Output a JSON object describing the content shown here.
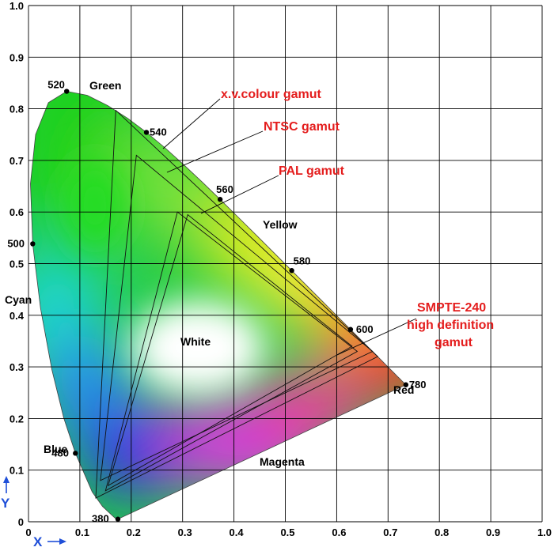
{
  "chart_data": {
    "type": "diagram",
    "xlim": [
      0,
      1
    ],
    "ylim": [
      0,
      1
    ],
    "x_ticks": [
      "0",
      "0.1",
      "0.2",
      "0.3",
      "0.4",
      "0.5",
      "0.6",
      "0.7",
      "0.8",
      "0.9",
      "1.0"
    ],
    "y_ticks": [
      "0",
      "0.1",
      "0.2",
      "0.3",
      "0.4",
      "0.5",
      "0.6",
      "0.7",
      "0.8",
      "0.9",
      "1.0"
    ],
    "x_axis_letter": "X",
    "y_axis_letter": "Y",
    "grid": true,
    "colors": {
      "gamut_label": "#e41d1d",
      "axis_arrow": "#1f4fd8",
      "grid": "#000000"
    },
    "locus": [
      [
        0.1741,
        0.005
      ],
      [
        0.1738,
        0.0049
      ],
      [
        0.1736,
        0.0049
      ],
      [
        0.173,
        0.0048
      ],
      [
        0.1721,
        0.0048
      ],
      [
        0.1703,
        0.0058
      ],
      [
        0.1666,
        0.0089
      ],
      [
        0.1611,
        0.0138
      ],
      [
        0.144,
        0.0297
      ],
      [
        0.1241,
        0.0578
      ],
      [
        0.0913,
        0.1327
      ],
      [
        0.0687,
        0.2007
      ],
      [
        0.0454,
        0.295
      ],
      [
        0.0235,
        0.4127
      ],
      [
        0.0082,
        0.5384
      ],
      [
        0.0039,
        0.6548
      ],
      [
        0.0139,
        0.7502
      ],
      [
        0.0389,
        0.812
      ],
      [
        0.0743,
        0.8338
      ],
      [
        0.1142,
        0.8262
      ],
      [
        0.1547,
        0.8059
      ],
      [
        0.1929,
        0.7816
      ],
      [
        0.2296,
        0.7543
      ],
      [
        0.2658,
        0.7243
      ],
      [
        0.3016,
        0.6923
      ],
      [
        0.3373,
        0.6589
      ],
      [
        0.3731,
        0.6245
      ],
      [
        0.4087,
        0.5896
      ],
      [
        0.4441,
        0.5547
      ],
      [
        0.4788,
        0.5202
      ],
      [
        0.5125,
        0.4866
      ],
      [
        0.5448,
        0.4544
      ],
      [
        0.5752,
        0.4242
      ],
      [
        0.6029,
        0.3965
      ],
      [
        0.627,
        0.3725
      ],
      [
        0.6482,
        0.3514
      ],
      [
        0.6658,
        0.334
      ],
      [
        0.6801,
        0.3197
      ],
      [
        0.6915,
        0.3083
      ],
      [
        0.7006,
        0.2993
      ],
      [
        0.7079,
        0.292
      ],
      [
        0.714,
        0.2859
      ],
      [
        0.719,
        0.2809
      ],
      [
        0.723,
        0.277
      ],
      [
        0.726,
        0.274
      ],
      [
        0.7283,
        0.2717
      ],
      [
        0.73,
        0.27
      ],
      [
        0.7311,
        0.2689
      ],
      [
        0.732,
        0.268
      ],
      [
        0.7327,
        0.2673
      ],
      [
        0.7334,
        0.2666
      ],
      [
        0.734,
        0.266
      ],
      [
        0.7344,
        0.2656
      ],
      [
        0.7346,
        0.2654
      ],
      [
        0.7347,
        0.2653
      ]
    ],
    "wavelength_points": [
      {
        "label": "380",
        "x": 0.1741,
        "y": 0.005,
        "side": "left"
      },
      {
        "label": "480",
        "x": 0.0913,
        "y": 0.1327,
        "side": "left"
      },
      {
        "label": "500",
        "x": 0.0082,
        "y": 0.5384,
        "side": "left"
      },
      {
        "label": "520",
        "x": 0.0743,
        "y": 0.8338,
        "side": "left"
      },
      {
        "label": "540",
        "x": 0.2296,
        "y": 0.7543,
        "side": "right"
      },
      {
        "label": "560",
        "x": 0.3731,
        "y": 0.6245,
        "side": "right"
      },
      {
        "label": "580",
        "x": 0.5125,
        "y": 0.4866,
        "side": "right"
      },
      {
        "label": "600",
        "x": 0.627,
        "y": 0.3725,
        "side": "right"
      },
      {
        "label": "780",
        "x": 0.7347,
        "y": 0.2653,
        "side": "right"
      }
    ],
    "gamuts": [
      {
        "name": "x.v.colour gamut",
        "label_lines": [
          "x.v.colour gamut"
        ],
        "vertices": [
          [
            0.68,
            0.32
          ],
          [
            0.17,
            0.797
          ],
          [
            0.131,
            0.046
          ]
        ]
      },
      {
        "name": "NTSC gamut",
        "label_lines": [
          "NTSC gamut"
        ],
        "vertices": [
          [
            0.67,
            0.33
          ],
          [
            0.21,
            0.71
          ],
          [
            0.14,
            0.08
          ]
        ]
      },
      {
        "name": "PAL gamut",
        "label_lines": [
          "PAL gamut"
        ],
        "vertices": [
          [
            0.64,
            0.33
          ],
          [
            0.29,
            0.6
          ],
          [
            0.15,
            0.06
          ]
        ]
      },
      {
        "name": "SMPTE-240 high definition gamut",
        "label_lines": [
          "SMPTE-240",
          "high definition",
          "gamut"
        ],
        "vertices": [
          [
            0.63,
            0.34
          ],
          [
            0.31,
            0.595
          ],
          [
            0.155,
            0.07
          ]
        ]
      }
    ],
    "regions": [
      "Green",
      "Yellow",
      "Cyan",
      "White",
      "Red",
      "Blue",
      "Magenta"
    ]
  }
}
